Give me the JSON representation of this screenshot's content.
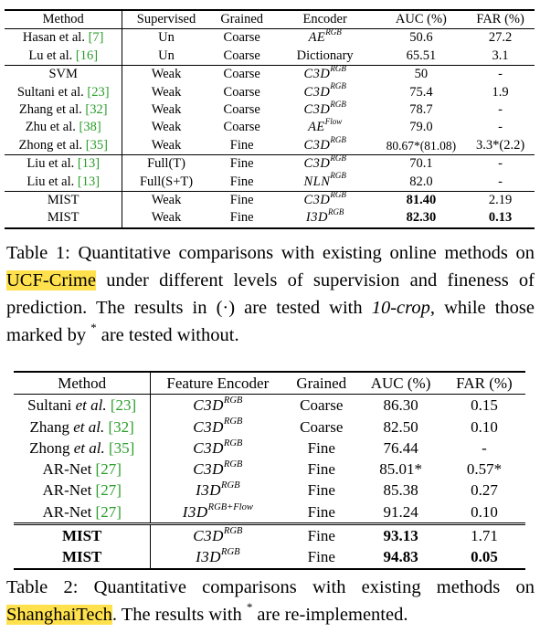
{
  "table1": {
    "headers": [
      "Method",
      "Supervised",
      "Grained",
      "Encoder",
      "AUC (%)",
      "FAR (%)"
    ],
    "rows": [
      {
        "method": "Hasan et al. ",
        "ref": "[7]",
        "sup": "Un",
        "grain": "Coarse",
        "enc": "AE",
        "enc_sup": "RGB",
        "auc": "50.6",
        "far": "27.2",
        "enc_math": true
      },
      {
        "method": "Lu et al. ",
        "ref": "[16]",
        "sup": "Un",
        "grain": "Coarse",
        "enc": "Dictionary",
        "enc_sup": "",
        "auc": "65.51",
        "far": "3.1",
        "enc_math": false
      },
      {
        "method": "SVM",
        "ref": "",
        "sup": "Weak",
        "grain": "Coarse",
        "enc": "C3D",
        "enc_sup": "RGB",
        "auc": "50",
        "far": "-",
        "enc_math": true
      },
      {
        "method": "Sultani et al. ",
        "ref": "[23]",
        "sup": "Weak",
        "grain": "Coarse",
        "enc": "C3D",
        "enc_sup": "RGB",
        "auc": "75.4",
        "far": "1.9",
        "enc_math": true
      },
      {
        "method": "Zhang et al. ",
        "ref": "[32]",
        "sup": "Weak",
        "grain": "Coarse",
        "enc": "C3D",
        "enc_sup": "RGB",
        "auc": "78.7",
        "far": "-",
        "enc_math": true
      },
      {
        "method": "Zhu et al. ",
        "ref": "[38]",
        "sup": "Weak",
        "grain": "Coarse",
        "enc": "AE",
        "enc_sup": "Flow",
        "auc": "79.0",
        "far": "-",
        "enc_math": true
      },
      {
        "method": "Zhong et al. ",
        "ref": "[35]",
        "sup": "Weak",
        "grain": "Fine",
        "enc": "C3D",
        "enc_sup": "RGB",
        "auc": "80.67*(81.08)",
        "far": "3.3*(2.2)",
        "enc_math": true
      },
      {
        "method": "Liu et al. ",
        "ref": "[13]",
        "sup": "Full(T)",
        "grain": "Fine",
        "enc": "C3D",
        "enc_sup": "RGB",
        "auc": "70.1",
        "far": "-",
        "enc_math": true
      },
      {
        "method": "Liu et al. ",
        "ref": "[13]",
        "sup": "Full(S+T)",
        "grain": "Fine",
        "enc": "NLN",
        "enc_sup": "RGB",
        "auc": "82.0",
        "far": "-",
        "enc_math": true
      },
      {
        "method": "MIST",
        "ref": "",
        "sup": "Weak",
        "grain": "Fine",
        "enc": "C3D",
        "enc_sup": "RGB",
        "auc": "81.40",
        "far": "2.19",
        "enc_math": true
      },
      {
        "method": "MIST",
        "ref": "",
        "sup": "Weak",
        "grain": "Fine",
        "enc": "I3D",
        "enc_sup": "RGB",
        "auc": "82.30",
        "far": "0.13",
        "enc_math": true
      }
    ]
  },
  "caption1": {
    "part1": "Table 1:  Quantitative comparisons with existing online methods on ",
    "highlight": "UCF-Crime",
    "part2": " under different levels of supervision and fineness of prediction. The results in ",
    "paren": "(·)",
    "part3": " are tested with ",
    "italic": "10-crop",
    "part4": ", while those marked by ",
    "star": "*",
    "part5": " are tested without."
  },
  "table2": {
    "headers": [
      "Method",
      "Feature Encoder",
      "Grained",
      "AUC (%)",
      "FAR (%)"
    ],
    "rows": [
      {
        "m1": "Sultani ",
        "m2": "et al.",
        "ref": " [23]",
        "enc": "C3D",
        "enc_sup": "RGB",
        "grain": "Coarse",
        "auc": "86.30",
        "far": "0.15"
      },
      {
        "m1": "Zhang ",
        "m2": "et al.",
        "ref": " [32]",
        "enc": "C3D",
        "enc_sup": "RGB",
        "grain": "Coarse",
        "auc": "82.50",
        "far": "0.10"
      },
      {
        "m1": "Zhong ",
        "m2": "et al.",
        "ref": " [35]",
        "enc": "C3D",
        "enc_sup": "RGB",
        "grain": "Fine",
        "auc": "76.44",
        "far": "-"
      },
      {
        "m1": "AR-Net ",
        "m2": "",
        "ref": "[27]",
        "enc": "C3D",
        "enc_sup": "RGB",
        "grain": "Fine",
        "auc": "85.01*",
        "far": "0.57*"
      },
      {
        "m1": "AR-Net ",
        "m2": "",
        "ref": "[27]",
        "enc": "I3D",
        "enc_sup": "RGB",
        "grain": "Fine",
        "auc": "85.38",
        "far": "0.27"
      },
      {
        "m1": "AR-Net ",
        "m2": "",
        "ref": "[27]",
        "enc": "I3D",
        "enc_sup": "RGB+Flow",
        "grain": "Fine",
        "auc": "91.24",
        "far": "0.10"
      },
      {
        "m1": "MIST",
        "m2": "",
        "ref": "",
        "enc": "C3D",
        "enc_sup": "RGB",
        "grain": "Fine",
        "auc": "93.13",
        "far": "1.71"
      },
      {
        "m1": "MIST",
        "m2": "",
        "ref": "",
        "enc": "I3D",
        "enc_sup": "RGB",
        "grain": "Fine",
        "auc": "94.83",
        "far": "0.05"
      }
    ]
  },
  "caption2": {
    "part1": "Table 2:  Quantitative comparisons with existing methods on ",
    "highlight": "ShanghaiTech",
    "part2": ". The results with ",
    "star": "*",
    "part3": " are re-implemented."
  }
}
